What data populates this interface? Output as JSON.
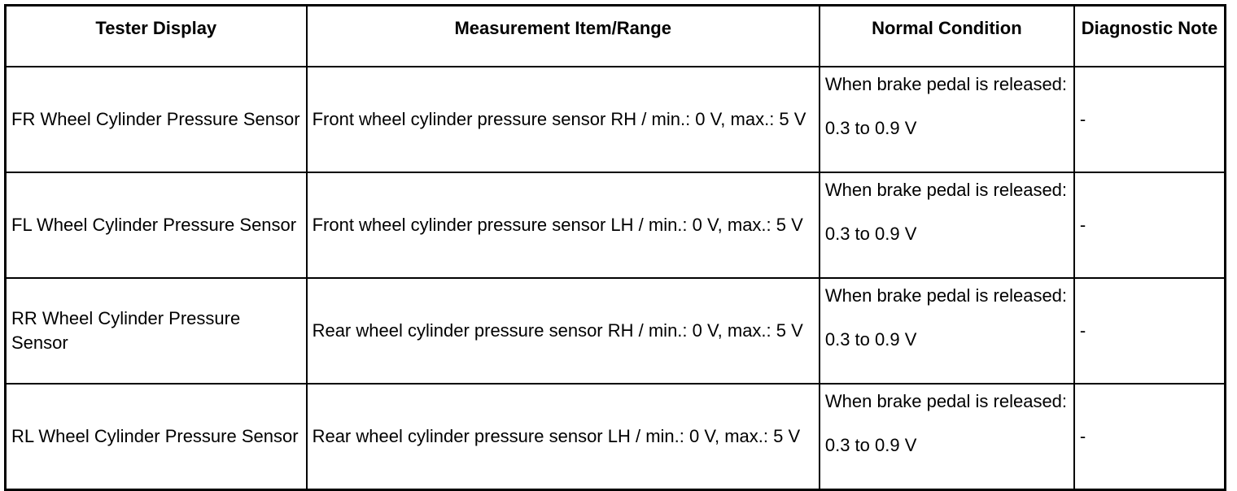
{
  "headers": {
    "tester_display": "Tester Display",
    "measurement": "Measurement Item/Range",
    "normal_condition": "Normal Condition",
    "diagnostic_note": "Diagnostic Note"
  },
  "rows": [
    {
      "tester_display": "FR Wheel Cylinder Pressure Sensor",
      "measurement": "Front wheel cylinder pressure sensor RH / min.: 0 V, max.: 5 V",
      "condition_line1": "When brake pedal is released:",
      "condition_line2": "0.3 to 0.9 V",
      "note": "-"
    },
    {
      "tester_display": "FL Wheel Cylinder Pressure Sensor",
      "measurement": "Front wheel cylinder pressure sensor LH / min.: 0 V, max.: 5 V",
      "condition_line1": "When brake pedal is released:",
      "condition_line2": "0.3 to 0.9 V",
      "note": "-"
    },
    {
      "tester_display": "RR Wheel Cylinder Pressure Sensor",
      "measurement": "Rear wheel cylinder pressure sensor RH / min.: 0 V, max.: 5 V",
      "condition_line1": "When brake pedal is released:",
      "condition_line2": "0.3 to 0.9 V",
      "note": "-"
    },
    {
      "tester_display": "RL Wheel Cylinder Pressure Sensor",
      "measurement": "Rear wheel cylinder pressure sensor LH / min.: 0 V, max.: 5 V",
      "condition_line1": "When brake pedal is released:",
      "condition_line2": "0.3 to 0.9 V",
      "note": "-"
    }
  ]
}
